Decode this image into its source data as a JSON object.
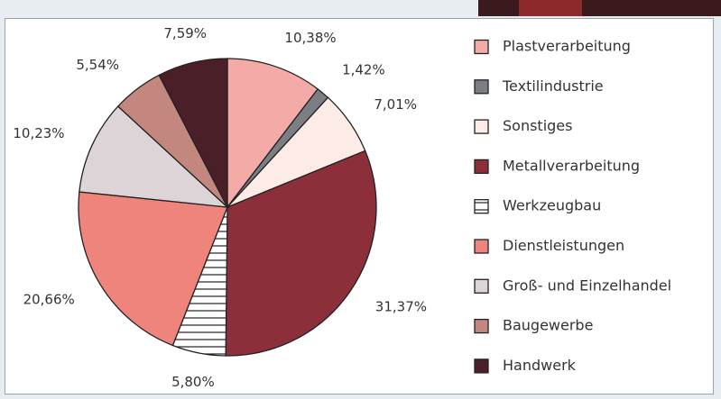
{
  "chart_data": {
    "type": "pie",
    "categories": [
      "Plastverarbeitung",
      "Textilindustrie",
      "Sonstiges",
      "Metallverarbeitung",
      "Werkzeugbau",
      "Dienstleistungen",
      "Groß- und Einzelhandel",
      "Baugewerbe",
      "Handwerk"
    ],
    "values": [
      10.38,
      1.42,
      7.01,
      31.37,
      5.8,
      20.66,
      10.23,
      5.54,
      7.59
    ],
    "value_labels": [
      "10,38%",
      "1,42%",
      "7,01%",
      "31,37%",
      "5,80%",
      "20,66%",
      "10,23%",
      "5,54%",
      "7,59%"
    ],
    "colors": [
      "#f4aaa6",
      "#7b7e82",
      "#fdebe7",
      "#8c2f3a",
      "#ffffff",
      "#ef847d",
      "#ddd4d7",
      "#c4877f",
      "#4a1f27"
    ],
    "hatched": [
      false,
      false,
      false,
      false,
      true,
      false,
      false,
      false,
      false
    ],
    "legend": "right"
  }
}
